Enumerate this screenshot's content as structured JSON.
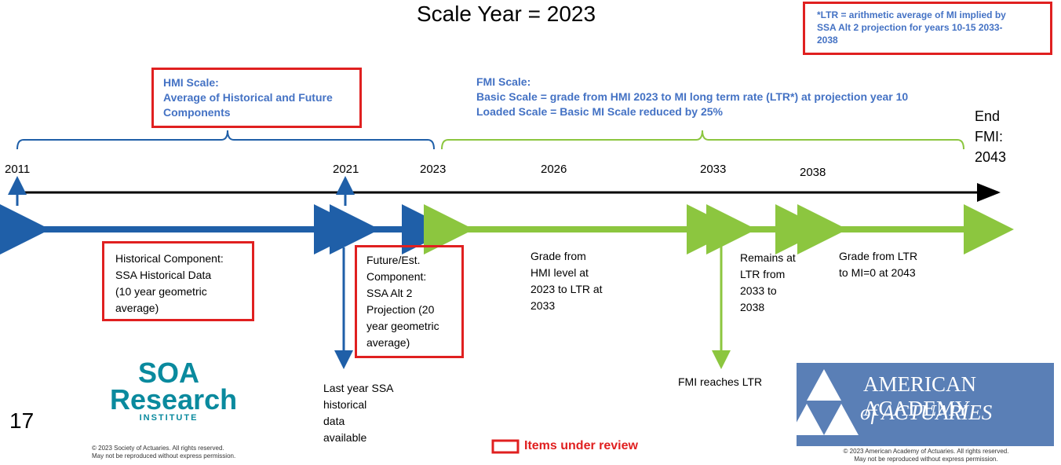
{
  "title": "Scale Year = 2023",
  "ltr_note": {
    "lines": [
      "*LTR = arithmetic average of MI implied by",
      "SSA Alt 2 projection for years 10-15 2033-",
      "2038"
    ]
  },
  "hmi_scale": {
    "lines": [
      "HMI Scale:",
      "Average of Historical and Future",
      "Components"
    ]
  },
  "fmi_scale": {
    "lines": [
      "FMI Scale:",
      "Basic Scale = grade from HMI 2023 to MI long term rate (LTR*) at projection year 10",
      "Loaded Scale = Basic MI Scale reduced by 25%"
    ]
  },
  "end_label": {
    "lines": [
      "End",
      "FMI:",
      "2043"
    ]
  },
  "years": [
    2011,
    2021,
    2023,
    2026,
    2033,
    2038
  ],
  "historical": {
    "lines": [
      "Historical Component:",
      "SSA Historical Data",
      "(10 year geometric",
      "average)"
    ]
  },
  "future": {
    "lines": [
      "Future/Est.",
      "Component:",
      "SSA Alt 2",
      "Projection (20",
      "year geometric",
      "average)"
    ]
  },
  "grade_hmi": {
    "lines": [
      "Grade from",
      "HMI level at",
      "2023 to LTR at",
      "2033"
    ]
  },
  "remains": {
    "lines": [
      "Remains at",
      "LTR from",
      "2033 to",
      "2038"
    ]
  },
  "grade_ltr": {
    "lines": [
      "Grade from LTR",
      "to MI=0 at 2043"
    ]
  },
  "last_year": {
    "lines": [
      "Last year SSA",
      "historical",
      "data",
      "available"
    ]
  },
  "fmi_reaches": "FMI reaches LTR",
  "page_number": 17,
  "soa_logo": {
    "top": "SOA",
    "middle": "Research",
    "bottom": "INSTITUTE"
  },
  "soa_copyright": {
    "lines": [
      "© 2023 Society of Actuaries. All rights reserved.",
      "May not be reproduced without express permission."
    ]
  },
  "legend": "Items under review",
  "aaa_logo": {
    "top": "AMERICAN ACADEMY",
    "bottom": "of ACTUARIES"
  },
  "aaa_copyright": {
    "lines": [
      "© 2023 American Academy of Actuaries. All rights reserved.",
      "May not be reproduced without express permission."
    ]
  }
}
